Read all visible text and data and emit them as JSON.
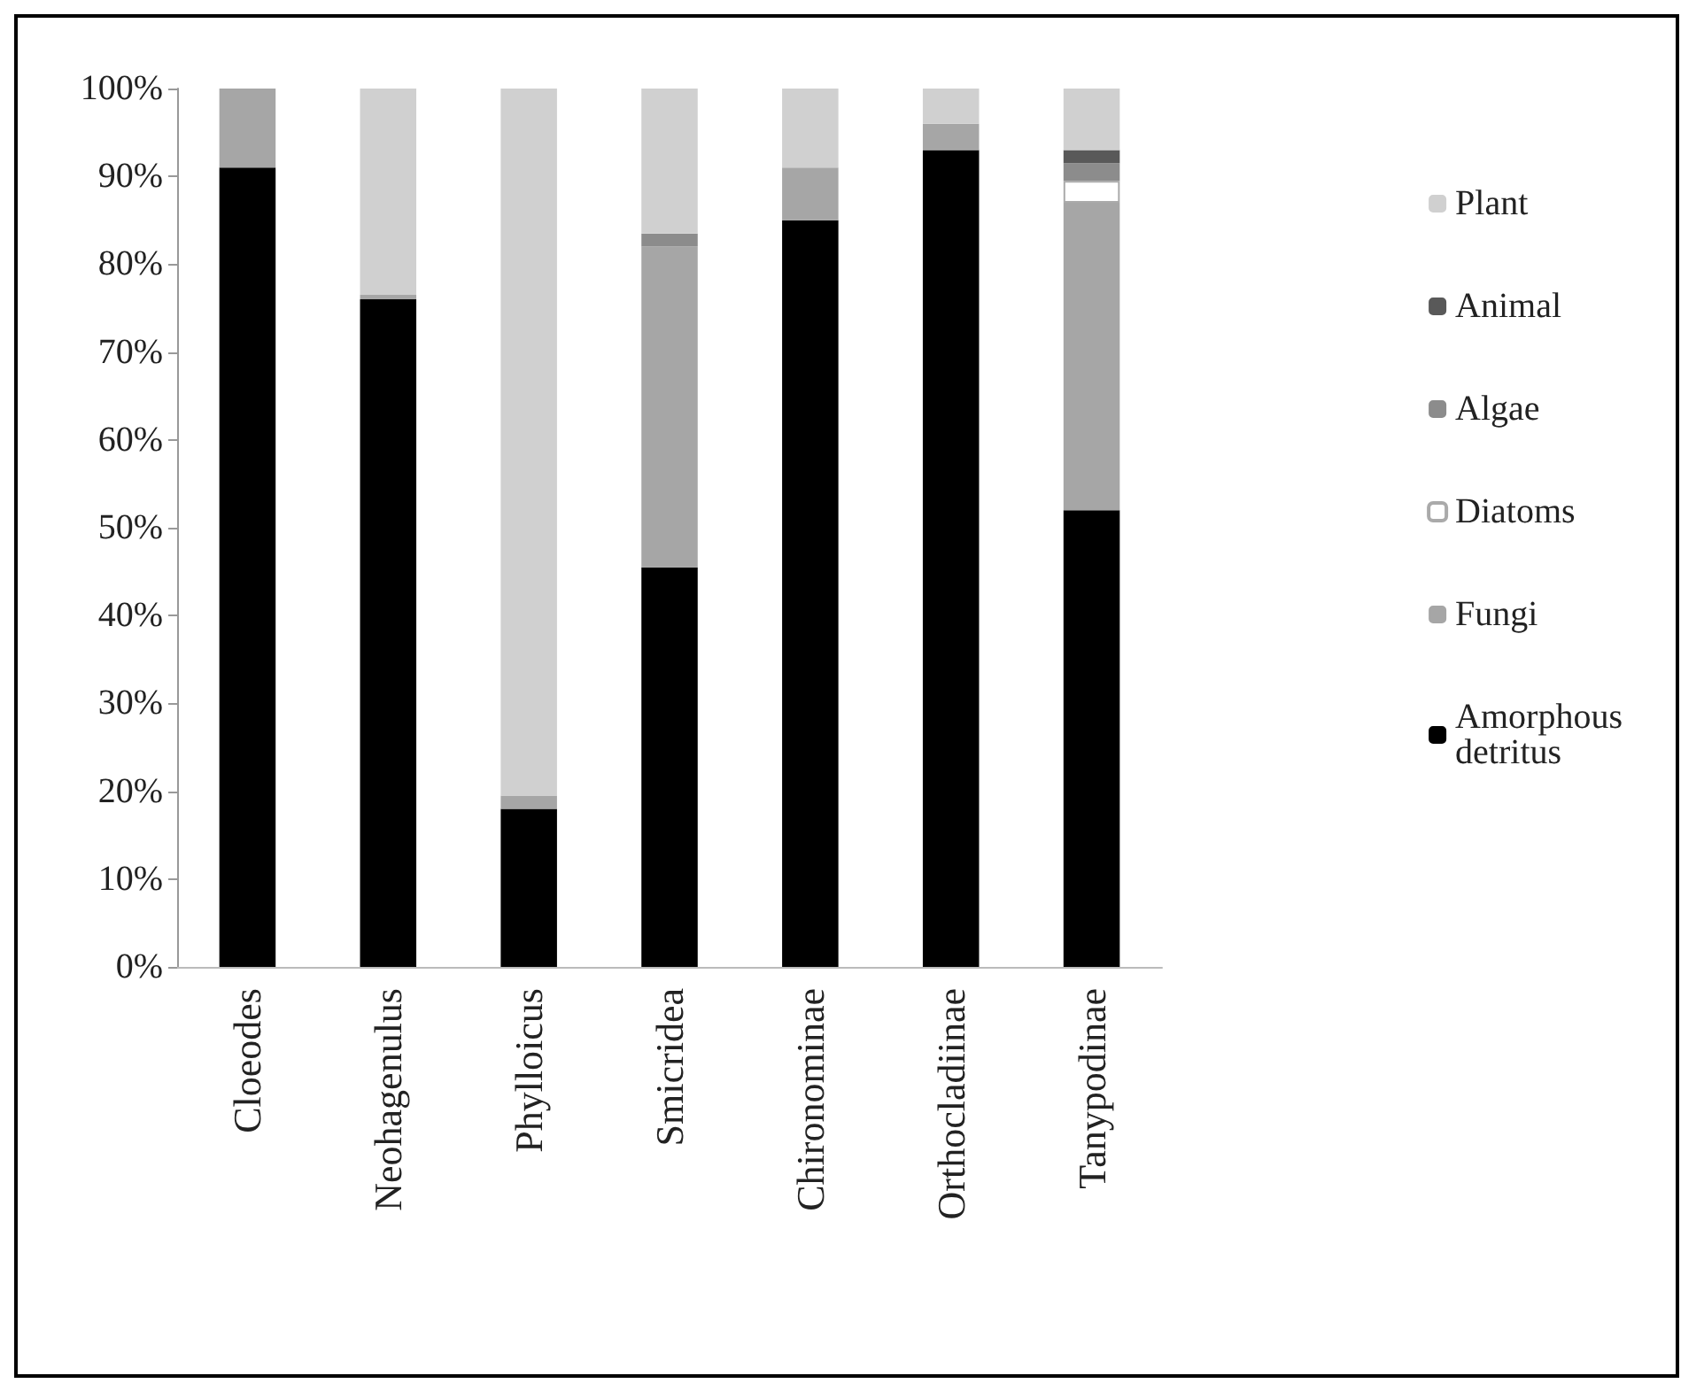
{
  "chart_data": {
    "type": "bar",
    "stacked": true,
    "categories": [
      "Cloeodes",
      "Neohagenulus",
      "Phylloicus",
      "Smicridea",
      "Chironominae",
      "Orthocladiinae",
      "Tanypodinae"
    ],
    "series": [
      {
        "name": "Amorphous detritus",
        "color": "#000000",
        "values": [
          91,
          76,
          18,
          45.5,
          85,
          93,
          52
        ]
      },
      {
        "name": "Fungi",
        "color": "#a6a6a6",
        "values": [
          9,
          0.5,
          1.5,
          36.5,
          6,
          3,
          35
        ]
      },
      {
        "name": "Diatoms",
        "color": "#ffffff",
        "values": [
          0,
          0,
          0,
          0,
          0,
          0,
          2.5
        ]
      },
      {
        "name": "Algae",
        "color": "#8c8c8c",
        "values": [
          0,
          0,
          0,
          1.5,
          0,
          0,
          2
        ]
      },
      {
        "name": "Animal",
        "color": "#595959",
        "values": [
          0,
          0,
          0,
          0,
          0,
          0,
          1.5
        ]
      },
      {
        "name": "Plant",
        "color": "#d0d0d0",
        "values": [
          0,
          23.5,
          80.5,
          16.5,
          9,
          4,
          7
        ]
      }
    ],
    "ylim": [
      0,
      100
    ],
    "yticks": [
      {
        "value": 0,
        "label": "0%"
      },
      {
        "value": 10,
        "label": "10%"
      },
      {
        "value": 20,
        "label": "20%"
      },
      {
        "value": 30,
        "label": "30%"
      },
      {
        "value": 40,
        "label": "40%"
      },
      {
        "value": 50,
        "label": "50%"
      },
      {
        "value": 60,
        "label": "60%"
      },
      {
        "value": 70,
        "label": "70%"
      },
      {
        "value": 80,
        "label": "80%"
      },
      {
        "value": 90,
        "label": "90%"
      },
      {
        "value": 100,
        "label": "100%"
      }
    ],
    "grid": false,
    "legend": "right"
  }
}
